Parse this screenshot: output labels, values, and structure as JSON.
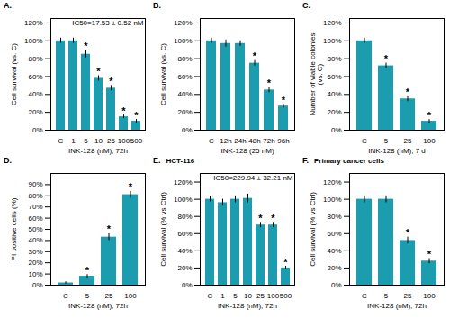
{
  "chart_data": [
    {
      "type": "bar",
      "title": "A.",
      "color": "#1B9DAF",
      "grid": false,
      "categories": [
        "C",
        "1",
        "5",
        "10",
        "25",
        "100",
        "500"
      ],
      "values": [
        100,
        100,
        85,
        58,
        47,
        15,
        10
      ],
      "errors": [
        3,
        3,
        4,
        3,
        3,
        2,
        2
      ],
      "significance": [
        null,
        null,
        "*",
        "*",
        "*",
        "*",
        "*"
      ],
      "ylabel": "Cell survival (vs. C)",
      "xlabel": "INK-128 (nM), 72h",
      "ylim": [
        0,
        125
      ],
      "yticks": [
        {
          "value": 0,
          "label": "0%"
        },
        {
          "value": 20,
          "label": "20%"
        },
        {
          "value": 40,
          "label": "40%"
        },
        {
          "value": 60,
          "label": "60%"
        },
        {
          "value": 80,
          "label": "80%"
        },
        {
          "value": 100,
          "label": "100%"
        },
        {
          "value": 120,
          "label": "120%"
        }
      ],
      "annotation": "IC50=17.53 ± 0.52 nM"
    },
    {
      "type": "bar",
      "title": "B.",
      "color": "#1B9DAF",
      "grid": false,
      "categories": [
        "C",
        "12h",
        "24h",
        "48h",
        "72h",
        "96h"
      ],
      "values": [
        100,
        97,
        97,
        75,
        45,
        27
      ],
      "errors": [
        3,
        4,
        3,
        3,
        3,
        2
      ],
      "significance": [
        null,
        null,
        null,
        "*",
        "*",
        "*"
      ],
      "ylabel": "Cell survival (vs. C)",
      "xlabel": "INK-128 (25 nM)",
      "ylim": [
        0,
        125
      ],
      "yticks": [
        {
          "value": 0,
          "label": "0%"
        },
        {
          "value": 20,
          "label": "20%"
        },
        {
          "value": 40,
          "label": "40%"
        },
        {
          "value": 60,
          "label": "60%"
        },
        {
          "value": 80,
          "label": "80%"
        },
        {
          "value": 100,
          "label": "100%"
        },
        {
          "value": 120,
          "label": "120%"
        }
      ]
    },
    {
      "type": "bar",
      "title": "C.",
      "color": "#1B9DAF",
      "grid": false,
      "categories": [
        "C",
        "5",
        "25",
        "100"
      ],
      "values": [
        100,
        72,
        35,
        10
      ],
      "errors": [
        3,
        3,
        3,
        2
      ],
      "significance": [
        null,
        "*",
        "*",
        "*"
      ],
      "ylabel": "Number of viable colonies\n(vs. C)",
      "xlabel": "INK-128 (nM), 7 d",
      "ylim": [
        0,
        125
      ],
      "yticks": [
        {
          "value": 0,
          "label": "0%"
        },
        {
          "value": 20,
          "label": "20%"
        },
        {
          "value": 40,
          "label": "40%"
        },
        {
          "value": 60,
          "label": "60%"
        },
        {
          "value": 80,
          "label": "80%"
        },
        {
          "value": 100,
          "label": "100%"
        },
        {
          "value": 120,
          "label": "120%"
        }
      ]
    },
    {
      "type": "bar",
      "title": "D.",
      "color": "#1B9DAF",
      "grid": false,
      "categories": [
        "C",
        "5",
        "25",
        "100"
      ],
      "values": [
        2,
        8,
        43,
        81
      ],
      "errors": [
        1,
        1.5,
        3,
        3
      ],
      "significance": [
        null,
        "*",
        "*",
        "*"
      ],
      "ylabel": "PI positive cells (%)",
      "xlabel": "INK-128 (nM), 72h",
      "ylim": [
        0,
        100
      ],
      "yticks": [
        {
          "value": 0,
          "label": "0%"
        },
        {
          "value": 10,
          "label": "10%"
        },
        {
          "value": 20,
          "label": "20%"
        },
        {
          "value": 30,
          "label": "30%"
        },
        {
          "value": 40,
          "label": "40%"
        },
        {
          "value": 50,
          "label": "50%"
        },
        {
          "value": 60,
          "label": "60%"
        },
        {
          "value": 70,
          "label": "70%"
        },
        {
          "value": 80,
          "label": "80%"
        },
        {
          "value": 90,
          "label": "90%"
        }
      ]
    },
    {
      "type": "bar",
      "title": "E.",
      "subtitle": "HCT-116",
      "color": "#1B9DAF",
      "grid": false,
      "categories": [
        "C",
        "1",
        "5",
        "10",
        "25",
        "100",
        "500"
      ],
      "values": [
        100,
        96,
        100,
        101,
        70,
        70,
        20
      ],
      "errors": [
        3,
        4,
        4,
        5,
        3,
        3,
        2
      ],
      "significance": [
        null,
        null,
        null,
        null,
        "*",
        "*",
        "*"
      ],
      "ylabel": "Cell survival (% vs Ctrl)",
      "xlabel": "INK-128 (nM), 72h",
      "ylim": [
        0,
        130
      ],
      "yticks": [
        {
          "value": 0,
          "label": "0%"
        },
        {
          "value": 20,
          "label": "20%"
        },
        {
          "value": 40,
          "label": "40%"
        },
        {
          "value": 60,
          "label": "60%"
        },
        {
          "value": 80,
          "label": "80%"
        },
        {
          "value": 100,
          "label": "100%"
        },
        {
          "value": 120,
          "label": "120%"
        }
      ],
      "annotation": "IC50=229.94 ± 32.21 nM"
    },
    {
      "type": "bar",
      "title": "F.",
      "subtitle": "Primary cancer cells",
      "color": "#1B9DAF",
      "grid": false,
      "categories": [
        "C",
        "5",
        "25",
        "100"
      ],
      "values": [
        100,
        100,
        52,
        28
      ],
      "errors": [
        4,
        4,
        4,
        3
      ],
      "significance": [
        null,
        null,
        "*",
        "*"
      ],
      "ylabel": "Cell survival (% vs Ctrl)",
      "xlabel": "INK-128 (nM), 72h",
      "ylim": [
        0,
        130
      ],
      "yticks": [
        {
          "value": 0,
          "label": "0%"
        },
        {
          "value": 20,
          "label": "20%"
        },
        {
          "value": 40,
          "label": "40%"
        },
        {
          "value": 60,
          "label": "60%"
        },
        {
          "value": 80,
          "label": "80%"
        },
        {
          "value": 100,
          "label": "100%"
        },
        {
          "value": 120,
          "label": "120%"
        }
      ]
    }
  ]
}
